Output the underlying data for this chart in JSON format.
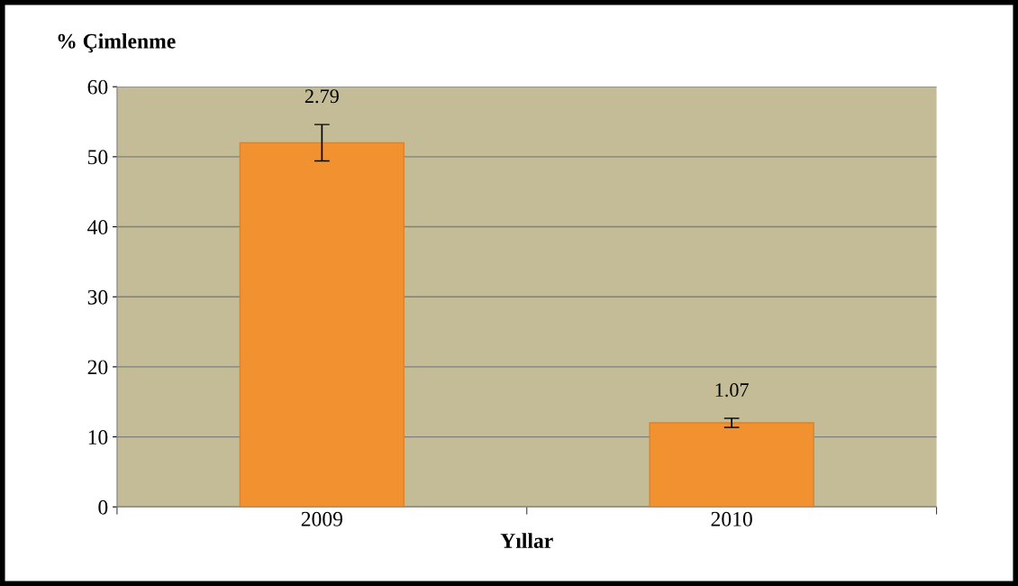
{
  "chart_data": {
    "type": "bar",
    "ylabel": "% Çimlenme",
    "xlabel": "Yıllar",
    "categories": [
      "2009",
      "2010"
    ],
    "values": [
      52,
      12
    ],
    "errors": [
      2.6,
      0.65
    ],
    "color": "#f29130",
    "ylim": [
      0,
      60
    ],
    "yticks": [
      0,
      10,
      20,
      30,
      40,
      50,
      60
    ],
    "grid": "y",
    "annotations": [
      {
        "text": "2.79",
        "x": "2009",
        "y": 54.6
      },
      {
        "text": "1.07",
        "x": "2010",
        "y": 12.65
      }
    ]
  }
}
